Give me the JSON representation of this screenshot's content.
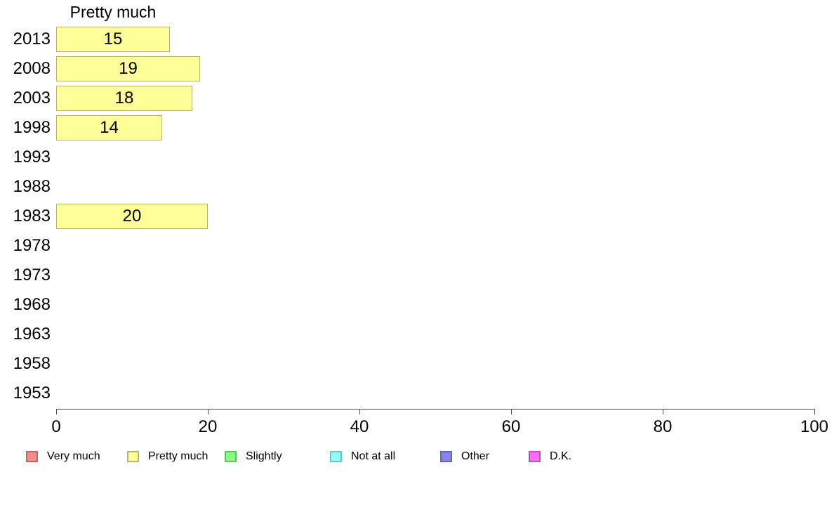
{
  "chart_data": {
    "type": "bar",
    "orientation": "horizontal",
    "title": "Pretty much",
    "categories": [
      "2013",
      "2008",
      "2003",
      "1998",
      "1993",
      "1988",
      "1983",
      "1978",
      "1973",
      "1968",
      "1963",
      "1958",
      "1953"
    ],
    "series": [
      {
        "name": "Pretty much",
        "values": [
          15,
          19,
          18,
          14,
          null,
          null,
          20,
          null,
          null,
          null,
          null,
          null,
          null
        ],
        "fill": "#FFFF99",
        "border": "#B5B56B"
      }
    ],
    "xlabel": "",
    "ylabel": "",
    "xlim": [
      0,
      100
    ],
    "x_ticks": [
      0,
      20,
      40,
      60,
      80,
      100
    ],
    "grid": false,
    "bar_value_labels_shown": true,
    "axis_color": "#4D4D4D",
    "text_color": "#000000",
    "legend_position": "bottom",
    "legend": [
      {
        "label": "Very much",
        "fill": "#FB8A8A",
        "border": "#BE6868"
      },
      {
        "label": "Pretty much",
        "fill": "#FFFF99",
        "border": "#B5B56B"
      },
      {
        "label": "Slightly",
        "fill": "#85FA85",
        "border": "#65BD65"
      },
      {
        "label": "Not at all",
        "fill": "#8FFFFF",
        "border": "#6DC2C2"
      },
      {
        "label": "Other",
        "fill": "#8585EF",
        "border": "#6565B5"
      },
      {
        "label": "D.K.",
        "fill": "#FB6BFB",
        "border": "#BD51BD"
      }
    ]
  }
}
